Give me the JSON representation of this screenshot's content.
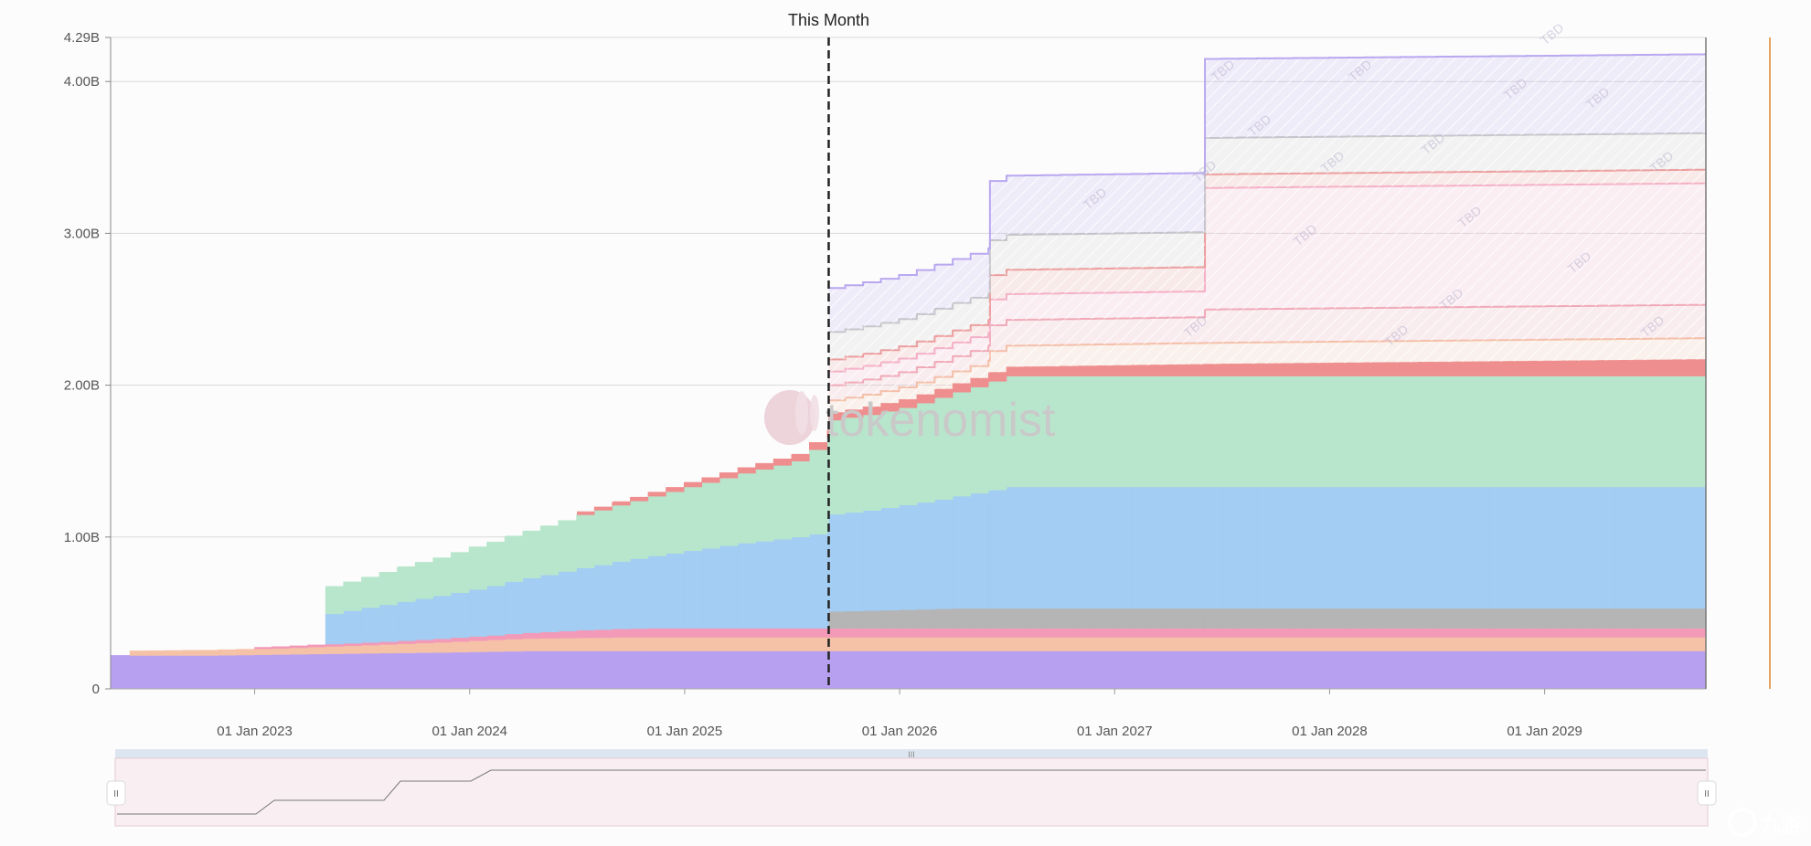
{
  "chart_data": {
    "type": "area",
    "stacked": true,
    "step": true,
    "marker": {
      "label": "This Month",
      "x": 2025.67
    },
    "x_range": [
      2022.33,
      2029.75
    ],
    "y_range": [
      0,
      4.29
    ],
    "y_ticks": [
      {
        "value": 0,
        "label": "0"
      },
      {
        "value": 1.0,
        "label": "1.00B"
      },
      {
        "value": 2.0,
        "label": "2.00B"
      },
      {
        "value": 3.0,
        "label": "3.00B"
      },
      {
        "value": 4.0,
        "label": "4.00B"
      },
      {
        "value": 4.29,
        "label": "4.29B"
      }
    ],
    "x_ticks": [
      {
        "value": 2023.0,
        "label": "01 Jan 2023"
      },
      {
        "value": 2024.0,
        "label": "01 Jan 2024"
      },
      {
        "value": 2025.0,
        "label": "01 Jan 2025"
      },
      {
        "value": 2026.0,
        "label": "01 Jan 2026"
      },
      {
        "value": 2027.0,
        "label": "01 Jan 2027"
      },
      {
        "value": 2028.0,
        "label": "01 Jan 2028"
      },
      {
        "value": 2029.0,
        "label": "01 Jan 2029"
      }
    ],
    "series": [
      {
        "color": "#b8a0f0",
        "start": 2022.33,
        "end": 2029.75,
        "points": [
          [
            2022.33,
            0.22
          ],
          [
            2022.75,
            0.22
          ],
          [
            2023.25,
            0.23
          ],
          [
            2023.83,
            0.24
          ],
          [
            2024.25,
            0.25
          ],
          [
            2029.75,
            0.25
          ]
        ]
      },
      {
        "color": "#f5c2a8",
        "start": 2022.42,
        "end": 2029.75,
        "points": [
          [
            2022.42,
            0.03
          ],
          [
            2023.08,
            0.04
          ],
          [
            2023.67,
            0.06
          ],
          [
            2024.17,
            0.08
          ],
          [
            2024.67,
            0.09
          ],
          [
            2025.0,
            0.09
          ],
          [
            2029.75,
            0.09
          ]
        ]
      },
      {
        "color": "#f29ab8",
        "start": 2023.0,
        "end": 2029.75,
        "points": [
          [
            2023.0,
            0.01
          ],
          [
            2023.67,
            0.02
          ],
          [
            2024.08,
            0.03
          ],
          [
            2024.5,
            0.05
          ],
          [
            2024.83,
            0.06
          ],
          [
            2029.75,
            0.06
          ]
        ]
      },
      {
        "color": "#b5b5b5",
        "start": 2025.67,
        "end": 2029.75,
        "points": [
          [
            2025.67,
            0.11
          ],
          [
            2026.25,
            0.13
          ],
          [
            2029.75,
            0.13
          ]
        ]
      },
      {
        "color": "#a3cdf2",
        "start": 2023.33,
        "end": 2029.75,
        "points": [
          [
            2023.33,
            0.2
          ],
          [
            2023.5,
            0.23
          ],
          [
            2023.75,
            0.27
          ],
          [
            2024.0,
            0.31
          ],
          [
            2024.25,
            0.36
          ],
          [
            2024.5,
            0.41
          ],
          [
            2024.75,
            0.46
          ],
          [
            2025.0,
            0.51
          ],
          [
            2025.25,
            0.56
          ],
          [
            2025.5,
            0.6
          ],
          [
            2025.67,
            0.64
          ],
          [
            2025.83,
            0.66
          ],
          [
            2026.0,
            0.69
          ],
          [
            2026.17,
            0.72
          ],
          [
            2026.42,
            0.78
          ],
          [
            2026.5,
            0.8
          ],
          [
            2029.75,
            0.8
          ]
        ]
      },
      {
        "color": "#b8e6cc",
        "start": 2023.33,
        "end": 2029.75,
        "points": [
          [
            2023.33,
            0.18
          ],
          [
            2023.5,
            0.2
          ],
          [
            2023.67,
            0.23
          ],
          [
            2023.83,
            0.25
          ],
          [
            2024.0,
            0.28
          ],
          [
            2024.25,
            0.31
          ],
          [
            2024.5,
            0.35
          ],
          [
            2024.75,
            0.38
          ],
          [
            2025.0,
            0.42
          ],
          [
            2025.25,
            0.46
          ],
          [
            2025.5,
            0.5
          ],
          [
            2025.67,
            0.62
          ],
          [
            2026.0,
            0.64
          ],
          [
            2026.5,
            0.73
          ],
          [
            2029.75,
            0.73
          ]
        ]
      },
      {
        "color": "#ef8e8e",
        "start": 2024.5,
        "end": 2029.75,
        "points": [
          [
            2024.5,
            0.02
          ],
          [
            2025.0,
            0.03
          ],
          [
            2025.67,
            0.05
          ],
          [
            2026.5,
            0.06
          ],
          [
            2027.5,
            0.08
          ],
          [
            2029.75,
            0.11
          ]
        ]
      }
    ],
    "tbd_series": [
      {
        "color": "#f5c2a8",
        "points": [
          [
            2025.67,
            0.08
          ],
          [
            2026.42,
            0.14
          ],
          [
            2027.42,
            0.14
          ],
          [
            2029.75,
            0.16
          ]
        ]
      },
      {
        "color": "#f0a9b6",
        "points": [
          [
            2025.67,
            0.1
          ],
          [
            2026.42,
            0.17
          ],
          [
            2027.42,
            0.22
          ],
          [
            2029.75,
            0.24
          ]
        ]
      },
      {
        "color": "#f5b3cb",
        "points": [
          [
            2025.67,
            0.09
          ],
          [
            2026.42,
            0.17
          ],
          [
            2027.42,
            0.8
          ],
          [
            2029.75,
            0.8
          ]
        ]
      },
      {
        "color": "#ef9a9a",
        "points": [
          [
            2025.67,
            0.08
          ],
          [
            2026.42,
            0.16
          ],
          [
            2027.42,
            0.09
          ],
          [
            2029.75,
            0.11
          ]
        ]
      },
      {
        "color": "#c8c8c8",
        "points": [
          [
            2025.67,
            0.18
          ],
          [
            2026.42,
            0.23
          ],
          [
            2027.42,
            0.24
          ],
          [
            2029.75,
            0.24
          ]
        ]
      },
      {
        "color": "#b9a8f0",
        "points": [
          [
            2025.67,
            0.29
          ],
          [
            2026.42,
            0.39
          ],
          [
            2027.42,
            0.52
          ],
          [
            2029.75,
            0.55
          ]
        ]
      }
    ]
  },
  "watermark": {
    "text": "tokenomist"
  },
  "corner_watermark": {
    "text": "九游"
  },
  "tbd_label": "TBD",
  "navigator": {
    "handle_glyph": "II",
    "grip_glyph": "III"
  }
}
